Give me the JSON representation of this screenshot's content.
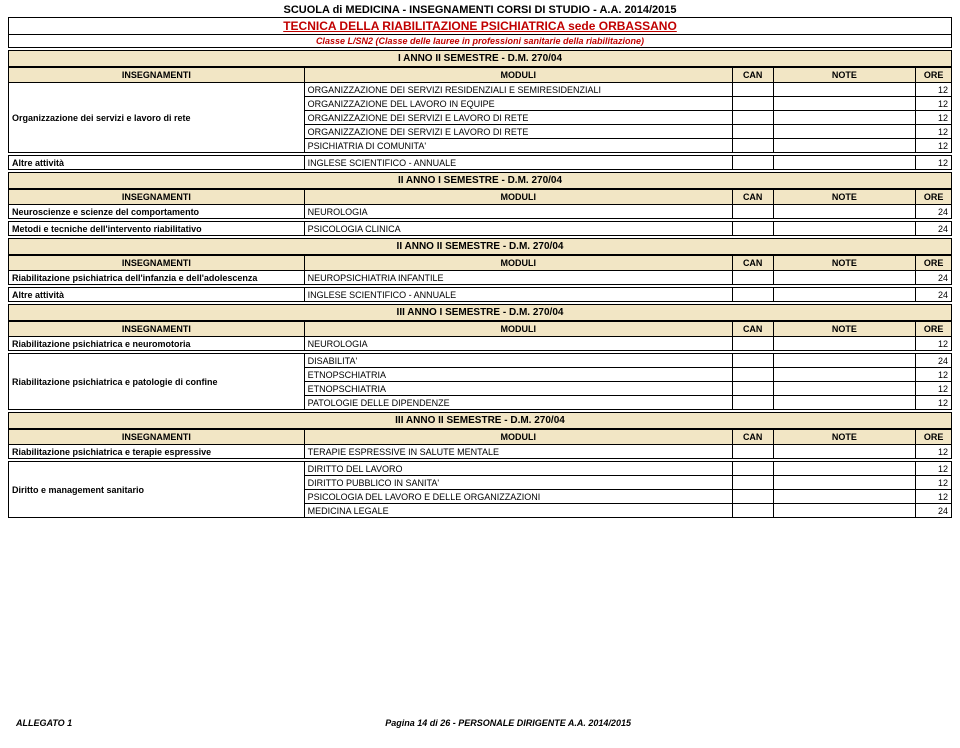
{
  "titles": {
    "main": "SCUOLA di MEDICINA - INSEGNAMENTI CORSI DI STUDIO - A.A. 2014/2015",
    "sub": "TECNICA DELLA RIABILITAZIONE PSICHIATRICA  sede ORBASSANO",
    "classLine": "Classe L/SN2 (Classe delle lauree in professioni sanitarie della riabilitazione)"
  },
  "headers": {
    "ins": "INSEGNAMENTI",
    "mod": "MODULI",
    "can": "CAN",
    "note": "NOTE",
    "ore": "ORE"
  },
  "sections": [
    {
      "banner": "I ANNO  II SEMESTRE - D.M. 270/04",
      "groups": [
        {
          "ins": "Organizzazione dei servizi e lavoro di rete",
          "rows": [
            {
              "mod": "ORGANIZZAZIONE DEI SERVIZI RESIDENZIALI E SEMIRESIDENZIALI",
              "ore": "12"
            },
            {
              "mod": "ORGANIZZAZIONE DEL LAVORO IN EQUIPE",
              "ore": "12"
            },
            {
              "mod": "ORGANIZZAZIONE DEI SERVIZI E LAVORO DI RETE",
              "ore": "12"
            },
            {
              "mod": "ORGANIZZAZIONE DEI SERVIZI E LAVORO DI RETE",
              "ore": "12"
            },
            {
              "mod": "PSICHIATRIA DI COMUNITA'",
              "ore": "12"
            }
          ]
        },
        {
          "ins": "Altre attività",
          "rows": [
            {
              "mod": "INGLESE SCIENTIFICO - ANNUALE",
              "ore": "12"
            }
          ]
        }
      ]
    },
    {
      "banner": "II ANNO  I SEMESTRE - D.M. 270/04",
      "groups": [
        {
          "ins": "Neuroscienze e scienze del comportamento",
          "rows": [
            {
              "mod": "NEUROLOGIA",
              "ore": "24"
            }
          ]
        },
        {
          "ins": "Metodi e tecniche dell'intervento riabilitativo",
          "rows": [
            {
              "mod": "PSICOLOGIA CLINICA",
              "ore": "24"
            }
          ]
        }
      ]
    },
    {
      "banner": "II ANNO  II SEMESTRE - D.M. 270/04",
      "groups": [
        {
          "ins": "Riabilitazione psichiatrica dell'infanzia e dell'adolescenza",
          "rows": [
            {
              "mod": "NEUROPSICHIATRIA INFANTILE",
              "ore": "24"
            }
          ]
        },
        {
          "ins": "Altre attività",
          "rows": [
            {
              "mod": "INGLESE SCIENTIFICO - ANNUALE",
              "ore": "24"
            }
          ]
        }
      ]
    },
    {
      "banner": "III ANNO  I SEMESTRE - D.M. 270/04",
      "groups": [
        {
          "ins": "Riabilitazione psichiatrica e neuromotoria",
          "rows": [
            {
              "mod": "NEUROLOGIA",
              "ore": "12"
            }
          ]
        },
        {
          "ins": "Riabilitazione psichiatrica e patologie di confine",
          "rows": [
            {
              "mod": "DISABILITA'",
              "ore": "24"
            },
            {
              "mod": "ETNOPSCHIATRIA",
              "ore": "12"
            },
            {
              "mod": "ETNOPSCHIATRIA",
              "ore": "12"
            },
            {
              "mod": "PATOLOGIE DELLE DIPENDENZE",
              "ore": "12"
            }
          ]
        }
      ]
    },
    {
      "banner": "III ANNO  II SEMESTRE - D.M. 270/04",
      "groups": [
        {
          "ins": "Riabilitazione psichiatrica e terapie espressive",
          "rows": [
            {
              "mod": "TERAPIE ESPRESSIVE IN SALUTE MENTALE",
              "ore": "12"
            }
          ]
        },
        {
          "ins": "Diritto e management sanitario",
          "rows": [
            {
              "mod": "DIRITTO DEL LAVORO",
              "ore": "12"
            },
            {
              "mod": "DIRITTO PUBBLICO IN SANITA'",
              "ore": "12"
            },
            {
              "mod": "PSICOLOGIA DEL LAVORO E DELLE ORGANIZZAZIONI",
              "ore": "12"
            },
            {
              "mod": "MEDICINA LEGALE",
              "ore": "24"
            }
          ]
        }
      ]
    }
  ],
  "footer": {
    "left": "ALLEGATO 1",
    "center": "Pagina 14 di 26 - PERSONALE DIRIGENTE A.A. 2014/2015"
  },
  "colors": {
    "bannerBg": "#f2e6c5",
    "accent": "#c00000",
    "border": "#000000"
  }
}
